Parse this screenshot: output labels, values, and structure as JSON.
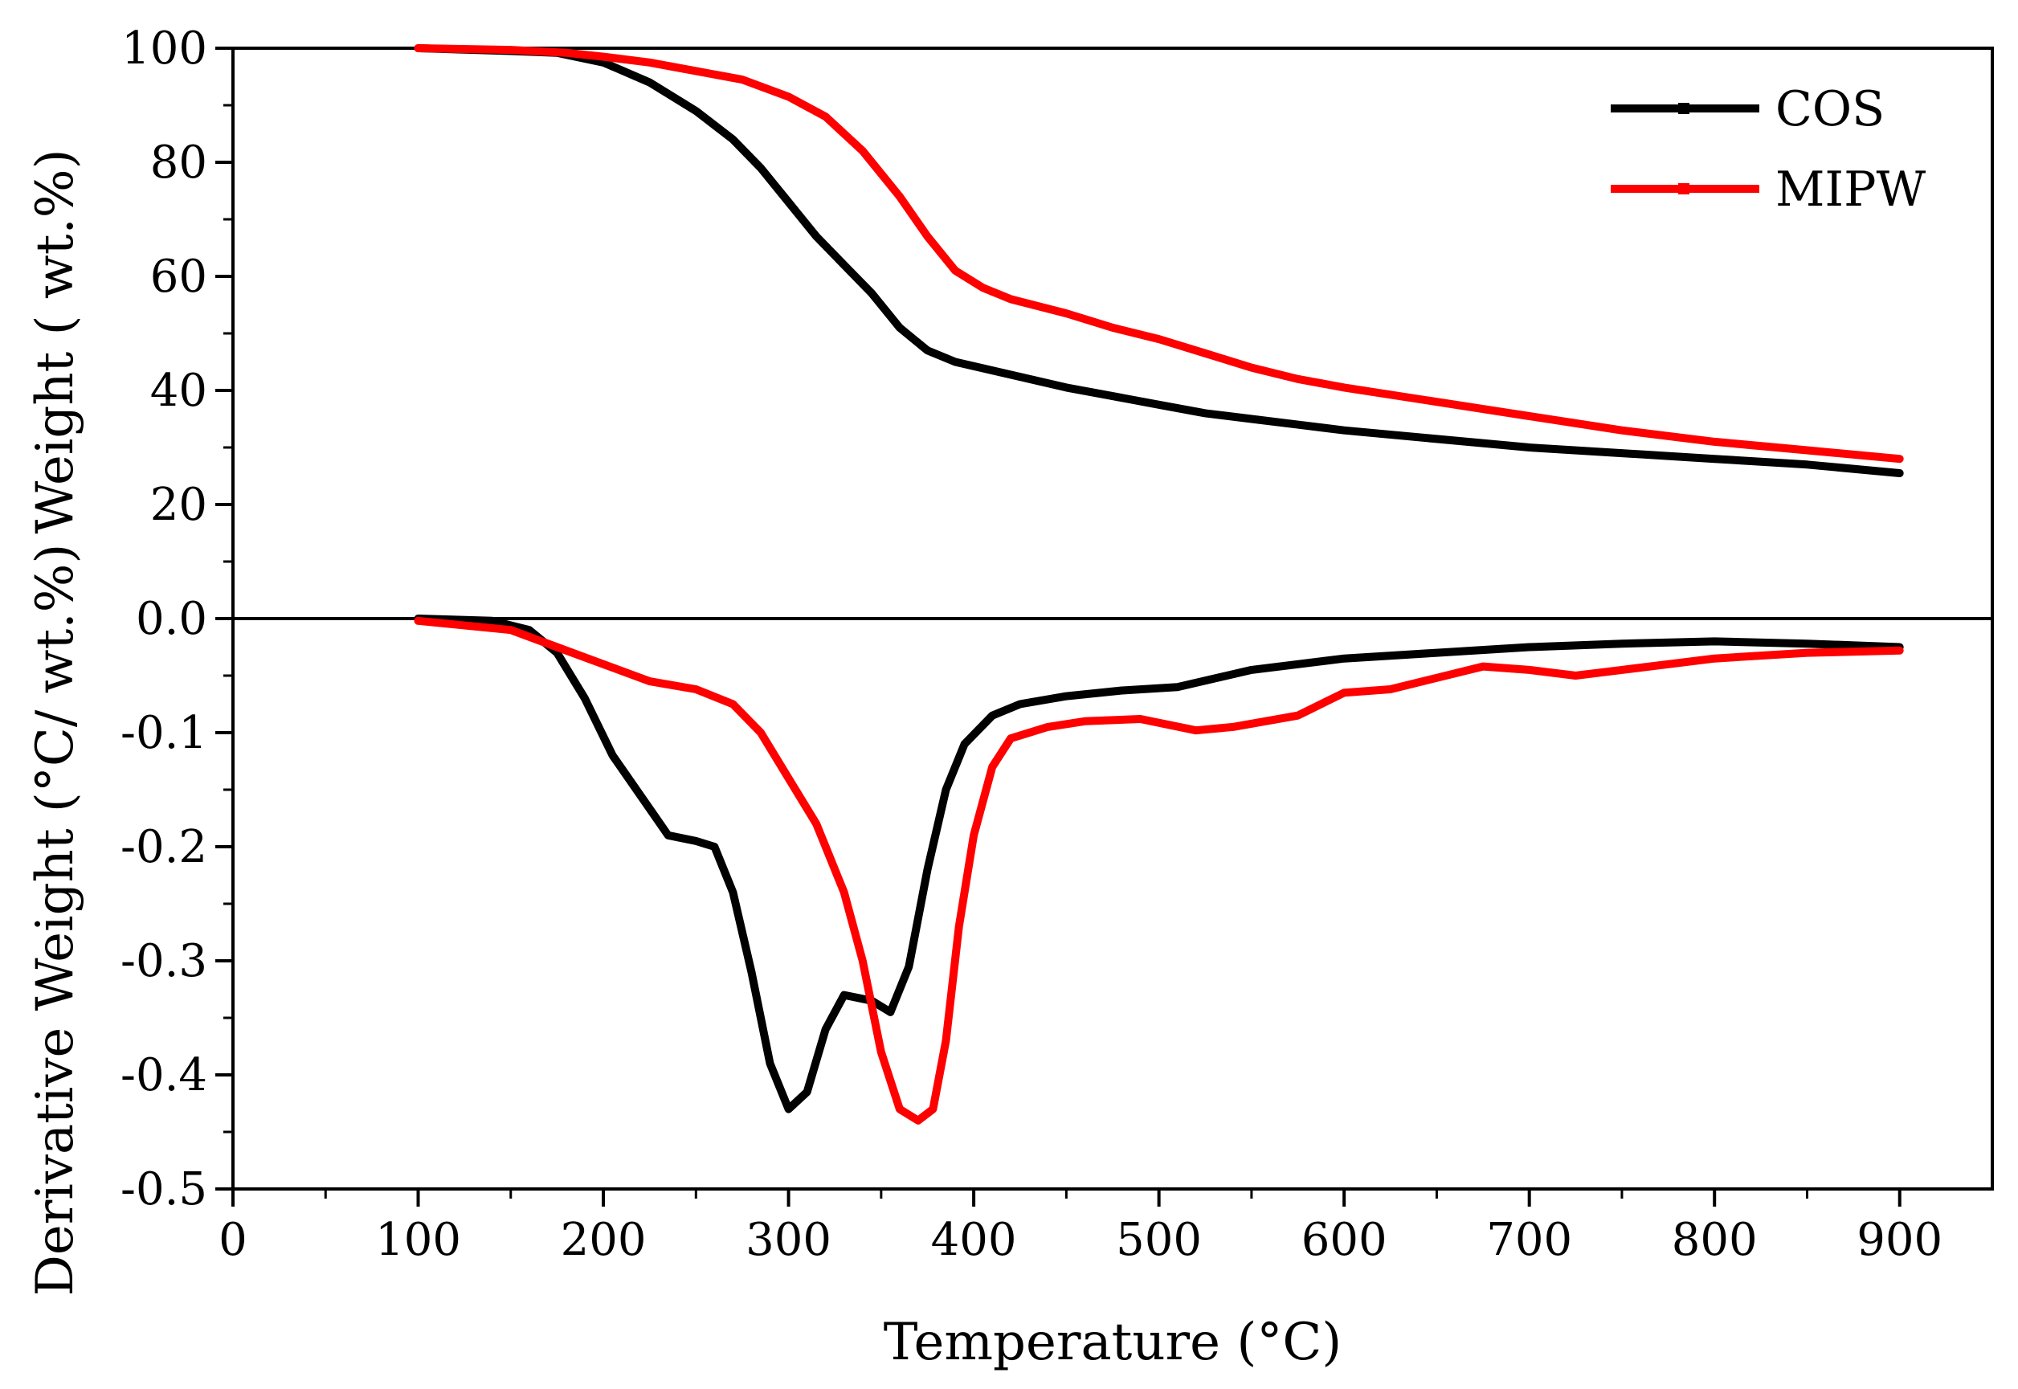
{
  "chart_data": {
    "type": "line",
    "xlabel": "Temperature (°C)",
    "xlim": [
      0,
      950
    ],
    "x_ticks": [
      0,
      100,
      200,
      300,
      400,
      500,
      600,
      700,
      800,
      900
    ],
    "x_tick_labels": [
      "0",
      "100",
      "200",
      "300",
      "400",
      "500",
      "600",
      "700",
      "800",
      "900"
    ],
    "legend": {
      "placement": "top-right",
      "entries": [
        {
          "name": "COS",
          "color": "#000000"
        },
        {
          "name": "MIPW",
          "color": "#ff0000"
        }
      ]
    },
    "panels": [
      {
        "id": "tga",
        "ylabel": "Weight ( wt.%)",
        "ylim": [
          0,
          100
        ],
        "y_ticks": [
          20,
          40,
          60,
          80,
          100
        ],
        "y_tick_labels": [
          "20",
          "40",
          "60",
          "80",
          "100"
        ],
        "series": [
          {
            "name": "COS",
            "color": "#000000",
            "points": [
              [
                100,
                100
              ],
              [
                150,
                99.5
              ],
              [
                175,
                99.2
              ],
              [
                200,
                97.5
              ],
              [
                225,
                94
              ],
              [
                250,
                89
              ],
              [
                270,
                84
              ],
              [
                285,
                79
              ],
              [
                300,
                73
              ],
              [
                315,
                67
              ],
              [
                330,
                62
              ],
              [
                345,
                57
              ],
              [
                360,
                51
              ],
              [
                375,
                47
              ],
              [
                390,
                45
              ],
              [
                410,
                43.5
              ],
              [
                430,
                42
              ],
              [
                450,
                40.5
              ],
              [
                475,
                39
              ],
              [
                500,
                37.5
              ],
              [
                525,
                36
              ],
              [
                550,
                35
              ],
              [
                575,
                34
              ],
              [
                600,
                33
              ],
              [
                650,
                31.5
              ],
              [
                700,
                30
              ],
              [
                750,
                29
              ],
              [
                800,
                28
              ],
              [
                850,
                27
              ],
              [
                900,
                25.5
              ]
            ]
          },
          {
            "name": "MIPW",
            "color": "#ff0000",
            "points": [
              [
                100,
                100
              ],
              [
                150,
                99.7
              ],
              [
                180,
                99.2
              ],
              [
                200,
                98.5
              ],
              [
                225,
                97.5
              ],
              [
                250,
                96
              ],
              [
                275,
                94.5
              ],
              [
                300,
                91.5
              ],
              [
                320,
                88
              ],
              [
                340,
                82
              ],
              [
                360,
                74
              ],
              [
                375,
                67
              ],
              [
                390,
                61
              ],
              [
                405,
                58
              ],
              [
                420,
                56
              ],
              [
                450,
                53.5
              ],
              [
                475,
                51
              ],
              [
                500,
                49
              ],
              [
                525,
                46.5
              ],
              [
                550,
                44
              ],
              [
                575,
                42
              ],
              [
                600,
                40.5
              ],
              [
                650,
                38
              ],
              [
                700,
                35.5
              ],
              [
                750,
                33
              ],
              [
                800,
                31
              ],
              [
                850,
                29.5
              ],
              [
                900,
                28
              ]
            ]
          }
        ]
      },
      {
        "id": "dtg",
        "ylabel": "Derivative Weight (°C/ wt.%)",
        "ylim": [
          -0.5,
          0.0
        ],
        "y_ticks": [
          -0.5,
          -0.4,
          -0.3,
          -0.2,
          -0.1,
          0.0
        ],
        "y_tick_labels": [
          "-0.5",
          "-0.4",
          "-0.3",
          "-0.2",
          "-0.1",
          "0.0"
        ],
        "series": [
          {
            "name": "COS",
            "color": "#000000",
            "points": [
              [
                100,
                0
              ],
              [
                140,
                -0.002
              ],
              [
                160,
                -0.01
              ],
              [
                175,
                -0.03
              ],
              [
                190,
                -0.07
              ],
              [
                205,
                -0.12
              ],
              [
                220,
                -0.155
              ],
              [
                235,
                -0.19
              ],
              [
                250,
                -0.195
              ],
              [
                260,
                -0.2
              ],
              [
                270,
                -0.24
              ],
              [
                280,
                -0.31
              ],
              [
                290,
                -0.39
              ],
              [
                300,
                -0.43
              ],
              [
                310,
                -0.415
              ],
              [
                320,
                -0.36
              ],
              [
                330,
                -0.33
              ],
              [
                345,
                -0.335
              ],
              [
                355,
                -0.345
              ],
              [
                365,
                -0.305
              ],
              [
                375,
                -0.22
              ],
              [
                385,
                -0.15
              ],
              [
                395,
                -0.11
              ],
              [
                410,
                -0.085
              ],
              [
                425,
                -0.075
              ],
              [
                450,
                -0.068
              ],
              [
                480,
                -0.063
              ],
              [
                510,
                -0.06
              ],
              [
                550,
                -0.045
              ],
              [
                600,
                -0.035
              ],
              [
                650,
                -0.03
              ],
              [
                700,
                -0.025
              ],
              [
                750,
                -0.022
              ],
              [
                800,
                -0.02
              ],
              [
                850,
                -0.022
              ],
              [
                900,
                -0.025
              ]
            ]
          },
          {
            "name": "MIPW",
            "color": "#ff0000",
            "points": [
              [
                100,
                -0.002
              ],
              [
                150,
                -0.01
              ],
              [
                175,
                -0.025
              ],
              [
                200,
                -0.04
              ],
              [
                225,
                -0.055
              ],
              [
                250,
                -0.062
              ],
              [
                270,
                -0.075
              ],
              [
                285,
                -0.1
              ],
              [
                300,
                -0.14
              ],
              [
                315,
                -0.18
              ],
              [
                330,
                -0.24
              ],
              [
                340,
                -0.3
              ],
              [
                350,
                -0.38
              ],
              [
                360,
                -0.43
              ],
              [
                370,
                -0.44
              ],
              [
                378,
                -0.43
              ],
              [
                385,
                -0.37
              ],
              [
                392,
                -0.27
              ],
              [
                400,
                -0.19
              ],
              [
                410,
                -0.13
              ],
              [
                420,
                -0.105
              ],
              [
                440,
                -0.095
              ],
              [
                460,
                -0.09
              ],
              [
                490,
                -0.088
              ],
              [
                520,
                -0.098
              ],
              [
                540,
                -0.095
              ],
              [
                575,
                -0.085
              ],
              [
                600,
                -0.065
              ],
              [
                625,
                -0.062
              ],
              [
                650,
                -0.052
              ],
              [
                675,
                -0.042
              ],
              [
                700,
                -0.045
              ],
              [
                725,
                -0.05
              ],
              [
                750,
                -0.045
              ],
              [
                800,
                -0.035
              ],
              [
                850,
                -0.03
              ],
              [
                900,
                -0.028
              ]
            ]
          }
        ]
      }
    ]
  }
}
